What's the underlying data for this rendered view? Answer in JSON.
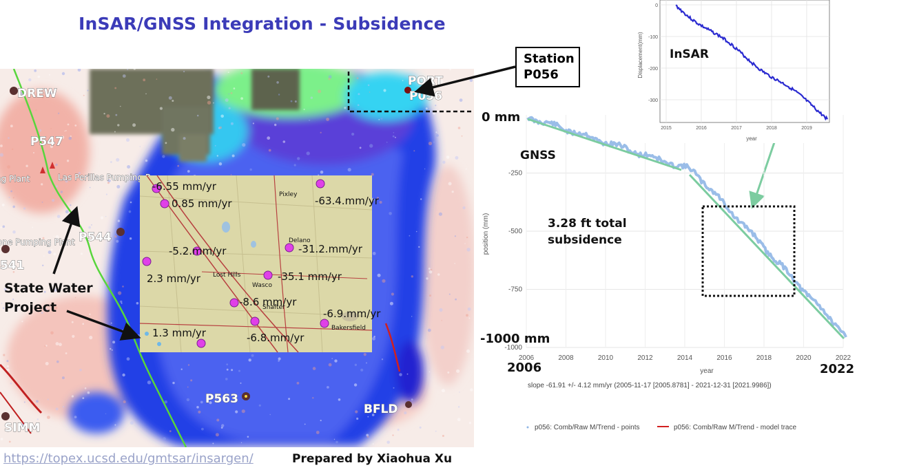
{
  "slide": {
    "title": "InSAR/GNSS Integration - Subsidence",
    "source_link": "https://topex.ucsd.edu/gmtsar/insargen/",
    "credit": "Prepared by Xiaohua Xu"
  },
  "map": {
    "stations": [
      "DREW",
      "P547",
      "P544",
      "541",
      "P563",
      "BFLD",
      "SIMM",
      "PORT",
      "P056"
    ],
    "place_labels": [
      "ng Plant",
      "Las Perillas Pumping P",
      "one Pumping Plant"
    ],
    "callout_station": "Station P056",
    "callout_water_line1": "State Water",
    "callout_water_line2": "Project",
    "inset_towns": [
      "Pixley",
      "Delano",
      "Lost Hills",
      "Wasco",
      "Shafter",
      "Bakersfield"
    ],
    "inset_rates": [
      "-6.55 mm/yr",
      "0.85 mm/yr",
      "-63.4.mm/yr",
      "-5.2.mm/yr",
      "-31.2.mm/yr",
      "2.3 mm/yr",
      "-35.1 mm/yr",
      "-8.6 mm/yr",
      "-6.9.mm/yr",
      "1.3 mm/yr",
      "-6.8.mm/yr"
    ],
    "colors": {
      "subsidence": "#1f3ee0",
      "uplift": "#e04a3a",
      "canal": "#58d63c",
      "marker": "#e040e8"
    }
  },
  "insar_chart": {
    "label": "InSAR",
    "ylabel": "Displacement(mm)",
    "xlabel": "year",
    "yticks": [
      "0",
      "-100",
      "-200",
      "-300"
    ],
    "xticks": [
      "2015",
      "2016",
      "2017",
      "2018",
      "2019"
    ]
  },
  "gnss_chart": {
    "label": "GNSS",
    "zero_label": "0 mm",
    "min_label": "-1000 mm",
    "start_year": "2006",
    "end_year": "2022",
    "annotation_line1": "3.28 ft total",
    "annotation_line2": "subsidence",
    "ylabel": "position (mm)",
    "xlabel": "year",
    "yticks": [
      "-250",
      "-500",
      "-750",
      "-1000"
    ],
    "xticks": [
      "2006",
      "2008",
      "2010",
      "2012",
      "2014",
      "2016",
      "2018",
      "2020",
      "2022"
    ],
    "slope_text": "slope -61.91 +/- 4.12 mm/yr (2005-11-17 [2005.8781] - 2021-12-31 [2021.9986])",
    "legend_points": "p056: Comb/Raw M/Trend - points",
    "legend_trace": "p056: Comb/Raw M/Trend - model trace",
    "colors": {
      "points": "#8fb6e6",
      "trend": "#7ccca0",
      "trace": "#d22020"
    }
  }
}
